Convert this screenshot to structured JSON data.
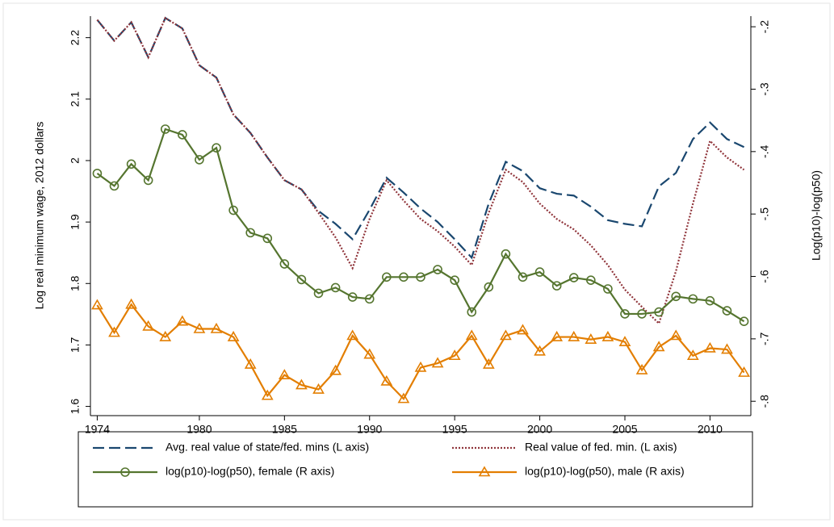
{
  "chart_data": {
    "type": "line",
    "y_label": "Log real minimum wage, 2012 dollars",
    "y2_label": "Log(p10)-log(p50)",
    "x": [
      1974,
      1975,
      1976,
      1977,
      1978,
      1979,
      1980,
      1981,
      1982,
      1983,
      1984,
      1985,
      1986,
      1987,
      1988,
      1989,
      1990,
      1991,
      1992,
      1993,
      1994,
      1995,
      1996,
      1997,
      1998,
      1999,
      2000,
      2001,
      2002,
      2003,
      2004,
      2005,
      2006,
      2007,
      2008,
      2009,
      2010,
      2011,
      2012
    ],
    "xlim": [
      1973.6,
      2012.4
    ],
    "xticks": [
      1974,
      1980,
      1985,
      1990,
      1995,
      2000,
      2005,
      2010
    ],
    "ylim": [
      1.585,
      2.235
    ],
    "yticks": [
      1.6,
      1.7,
      1.8,
      1.9,
      2,
      2.1,
      2.2
    ],
    "y2lim": [
      -0.823,
      -0.183
    ],
    "y2ticks": [
      {
        "value": -0.8,
        "label": "-.8"
      },
      {
        "value": -0.7,
        "label": "-.7"
      },
      {
        "value": -0.6,
        "label": "-.6"
      },
      {
        "value": -0.5,
        "label": "-.5"
      },
      {
        "value": -0.4,
        "label": "-.4"
      },
      {
        "value": -0.3,
        "label": "-.3"
      },
      {
        "value": -0.2,
        "label": "-.2"
      }
    ],
    "series": [
      {
        "name": "Avg. real value of state/fed. mins (L axis)",
        "color": "#1a476f",
        "style": "dash",
        "marker": "none",
        "values": [
          2.229,
          2.195,
          2.225,
          2.168,
          2.232,
          2.215,
          2.155,
          2.135,
          2.075,
          2.045,
          2.005,
          1.968,
          1.953,
          1.918,
          1.897,
          1.872,
          1.92,
          1.972,
          1.948,
          1.922,
          1.9,
          1.872,
          1.842,
          1.93,
          1.998,
          1.983,
          1.955,
          1.946,
          1.943,
          1.925,
          1.903,
          1.897,
          1.893,
          1.958,
          1.98,
          2.035,
          2.062,
          2.035,
          2.022
        ]
      },
      {
        "name": "Real value of fed. min. (L axis)",
        "color": "#90353b",
        "style": "dot",
        "marker": "none",
        "values": [
          2.229,
          2.195,
          2.225,
          2.168,
          2.232,
          2.215,
          2.155,
          2.135,
          2.075,
          2.045,
          2.005,
          1.968,
          1.953,
          1.915,
          1.875,
          1.825,
          1.905,
          1.968,
          1.935,
          1.905,
          1.885,
          1.86,
          1.83,
          1.915,
          1.985,
          1.965,
          1.93,
          1.905,
          1.888,
          1.862,
          1.83,
          1.79,
          1.762,
          1.735,
          1.82,
          1.93,
          2.032,
          2.005,
          1.985
        ]
      },
      {
        "name": "log(p10)-log(p50), female (R axis)",
        "color": "#55752f",
        "style": "solid",
        "marker": "circle",
        "axis": "y2",
        "values": [
          -0.435,
          -0.455,
          -0.42,
          -0.446,
          -0.364,
          -0.373,
          -0.413,
          -0.394,
          -0.494,
          -0.53,
          -0.539,
          -0.58,
          -0.605,
          -0.627,
          -0.618,
          -0.633,
          -0.636,
          -0.601,
          -0.601,
          -0.601,
          -0.589,
          -0.606,
          -0.657,
          -0.617,
          -0.564,
          -0.601,
          -0.593,
          -0.615,
          -0.602,
          -0.606,
          -0.62,
          -0.66,
          -0.66,
          -0.657,
          -0.632,
          -0.636,
          -0.639,
          -0.655,
          -0.672
        ]
      },
      {
        "name": "log(p10)-log(p50), male (R axis)",
        "color": "#e37e00",
        "style": "solid",
        "marker": "triangle",
        "axis": "y2",
        "values": [
          -0.646,
          -0.69,
          -0.645,
          -0.68,
          -0.697,
          -0.672,
          -0.684,
          -0.684,
          -0.697,
          -0.741,
          -0.791,
          -0.758,
          -0.774,
          -0.781,
          -0.751,
          -0.695,
          -0.725,
          -0.768,
          -0.796,
          -0.746,
          -0.739,
          -0.727,
          -0.695,
          -0.741,
          -0.695,
          -0.686,
          -0.72,
          -0.697,
          -0.697,
          -0.701,
          -0.697,
          -0.705,
          -0.75,
          -0.713,
          -0.695,
          -0.727,
          -0.715,
          -0.717,
          -0.754
        ]
      }
    ]
  }
}
